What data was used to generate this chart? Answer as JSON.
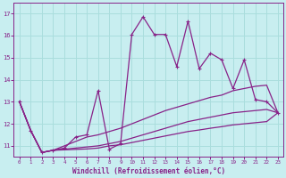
{
  "xlabel": "Windchill (Refroidissement éolien,°C)",
  "background_color": "#c8eef0",
  "grid_color": "#aadddd",
  "line_color": "#882288",
  "xlim": [
    -0.5,
    23.5
  ],
  "ylim": [
    10.5,
    17.5
  ],
  "yticks": [
    11,
    12,
    13,
    14,
    15,
    16,
    17
  ],
  "xticks": [
    0,
    1,
    2,
    3,
    4,
    5,
    6,
    7,
    8,
    9,
    10,
    11,
    12,
    13,
    14,
    15,
    16,
    17,
    18,
    19,
    20,
    21,
    22,
    23
  ],
  "series_zigzag": [
    13.0,
    11.7,
    10.7,
    10.8,
    10.9,
    11.4,
    11.5,
    13.5,
    10.85,
    11.1,
    16.05,
    16.85,
    16.05,
    16.05,
    14.6,
    16.65,
    14.5,
    15.2,
    14.9,
    13.6,
    14.9,
    13.1,
    13.0,
    12.5
  ],
  "series_line1": [
    13.0,
    11.7,
    10.7,
    10.8,
    11.0,
    11.2,
    11.4,
    11.5,
    11.65,
    11.8,
    12.0,
    12.2,
    12.4,
    12.6,
    12.75,
    12.9,
    13.05,
    13.2,
    13.3,
    13.5,
    13.6,
    13.7,
    13.75,
    12.5
  ],
  "series_line2": [
    13.0,
    11.7,
    10.7,
    10.8,
    10.85,
    10.9,
    10.95,
    11.0,
    11.1,
    11.2,
    11.35,
    11.5,
    11.65,
    11.8,
    11.95,
    12.1,
    12.2,
    12.3,
    12.4,
    12.5,
    12.55,
    12.6,
    12.65,
    12.5
  ],
  "series_line3": [
    13.0,
    11.7,
    10.7,
    10.8,
    10.82,
    10.84,
    10.86,
    10.9,
    11.0,
    11.05,
    11.15,
    11.25,
    11.35,
    11.45,
    11.55,
    11.65,
    11.72,
    11.8,
    11.87,
    11.95,
    12.0,
    12.05,
    12.1,
    12.5
  ]
}
